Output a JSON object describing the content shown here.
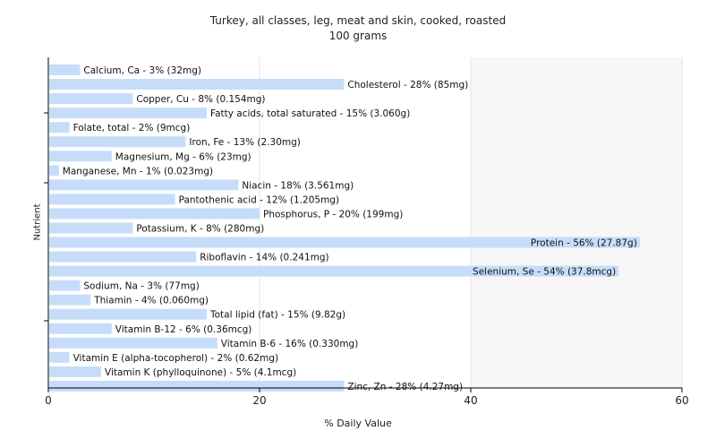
{
  "chart_data": {
    "type": "bar",
    "orientation": "horizontal",
    "title": "Turkey, all classes, leg, meat and skin, cooked, roasted",
    "subtitle": "100 grams",
    "xlabel": "% Daily Value",
    "ylabel": "Nutrient",
    "xlim": [
      0,
      60
    ],
    "xticks": [
      0,
      20,
      40,
      60
    ],
    "grid": true,
    "bar_color": "#c6ddfa",
    "categories": [
      "Calcium, Ca - 3% (32mg)",
      "Cholesterol - 28% (85mg)",
      "Copper, Cu - 8% (0.154mg)",
      "Fatty acids, total saturated - 15% (3.060g)",
      "Folate, total - 2% (9mcg)",
      "Iron, Fe - 13% (2.30mg)",
      "Magnesium, Mg - 6% (23mg)",
      "Manganese, Mn - 1% (0.023mg)",
      "Niacin - 18% (3.561mg)",
      "Pantothenic acid - 12% (1.205mg)",
      "Phosphorus, P - 20% (199mg)",
      "Potassium, K - 8% (280mg)",
      "Protein - 56% (27.87g)",
      "Riboflavin - 14% (0.241mg)",
      "Selenium, Se - 54% (37.8mcg)",
      "Sodium, Na - 3% (77mg)",
      "Thiamin - 4% (0.060mg)",
      "Total lipid (fat) - 15% (9.82g)",
      "Vitamin B-12 - 6% (0.36mcg)",
      "Vitamin B-6 - 16% (0.330mg)",
      "Vitamin E (alpha-tocopherol) - 2% (0.62mg)",
      "Vitamin K (phylloquinone) - 5% (4.1mcg)",
      "Zinc, Zn - 28% (4.27mg)"
    ],
    "values": [
      3,
      28,
      8,
      15,
      2,
      13,
      6,
      1,
      18,
      12,
      20,
      8,
      56,
      14,
      54,
      3,
      4,
      15,
      6,
      16,
      2,
      5,
      28
    ]
  }
}
